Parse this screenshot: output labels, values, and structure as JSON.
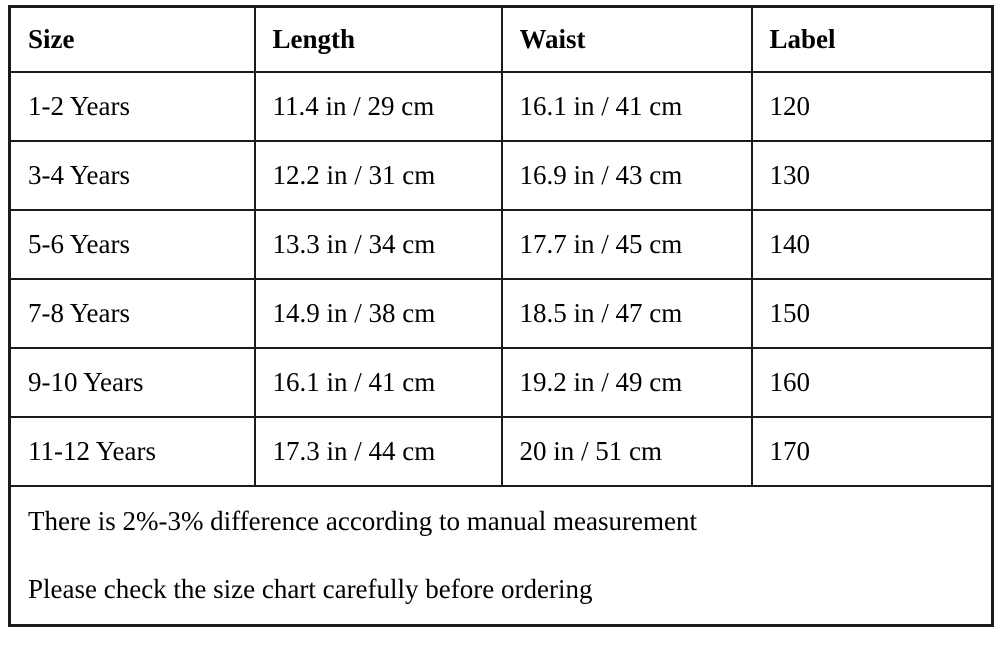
{
  "table": {
    "headers": [
      "Size",
      "Length",
      "Waist",
      "Label"
    ],
    "rows": [
      [
        "1-2 Years",
        "11.4 in / 29 cm",
        "16.1 in / 41 cm",
        "120"
      ],
      [
        "3-4 Years",
        "12.2 in / 31 cm",
        "16.9 in / 43 cm",
        "130"
      ],
      [
        "5-6 Years",
        "13.3 in / 34 cm",
        "17.7 in / 45 cm",
        "140"
      ],
      [
        "7-8 Years",
        "14.9 in / 38 cm",
        "18.5 in / 47 cm",
        "150"
      ],
      [
        "9-10 Years",
        "16.1 in / 41 cm",
        "19.2 in / 49 cm",
        "160"
      ],
      [
        "11-12 Years",
        "17.3 in / 44 cm",
        "20 in / 51 cm",
        "170"
      ]
    ]
  },
  "notes": [
    "There is 2%-3% difference according to manual measurement",
    "Please check the size chart carefully before ordering"
  ],
  "colors": {
    "border": "#1b1b1b",
    "text": "#000000",
    "background": "#ffffff"
  }
}
